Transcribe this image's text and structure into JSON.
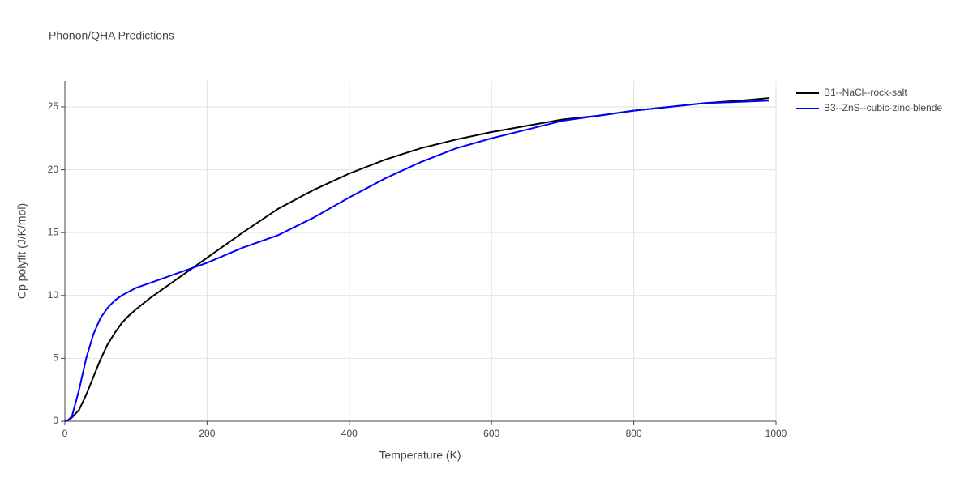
{
  "chart_data": {
    "type": "line",
    "title": "Phonon/QHA Predictions",
    "x_label": "Temperature (K)",
    "y_label": "Cp polyfit (J/K/mol)",
    "x": [
      0,
      5,
      10,
      20,
      30,
      40,
      50,
      60,
      70,
      80,
      90,
      100,
      120,
      140,
      160,
      180,
      200,
      250,
      300,
      350,
      400,
      450,
      500,
      550,
      600,
      650,
      700,
      750,
      800,
      850,
      900,
      950,
      990
    ],
    "series": [
      {
        "name": "B1--NaCl--rock-salt",
        "color": "#000000",
        "values": [
          0,
          0.1,
          0.3,
          0.9,
          2.1,
          3.5,
          4.9,
          6.1,
          7.0,
          7.8,
          8.4,
          8.9,
          9.8,
          10.6,
          11.4,
          12.2,
          13.0,
          15.0,
          16.9,
          18.4,
          19.7,
          20.8,
          21.7,
          22.4,
          23.0,
          23.5,
          24.0,
          24.3,
          24.7,
          25.0,
          25.3,
          25.5,
          25.7
        ]
      },
      {
        "name": "B3--ZnS--cubic-zinc-blende",
        "color": "#0000ff",
        "values": [
          0,
          0.1,
          0.4,
          2.5,
          5.0,
          6.9,
          8.2,
          9.0,
          9.6,
          10.0,
          10.3,
          10.6,
          11.0,
          11.4,
          11.8,
          12.2,
          12.6,
          13.8,
          14.8,
          16.2,
          17.8,
          19.3,
          20.6,
          21.7,
          22.5,
          23.2,
          23.9,
          24.3,
          24.7,
          25.0,
          25.3,
          25.4,
          25.5
        ]
      }
    ],
    "xlim": [
      0,
      1000
    ],
    "ylim": [
      0,
      27.06
    ],
    "xticks": [
      0,
      200,
      400,
      600,
      800,
      1000
    ],
    "yticks": [
      0,
      5,
      10,
      15,
      20,
      25
    ],
    "grid": true,
    "legend": "right"
  }
}
